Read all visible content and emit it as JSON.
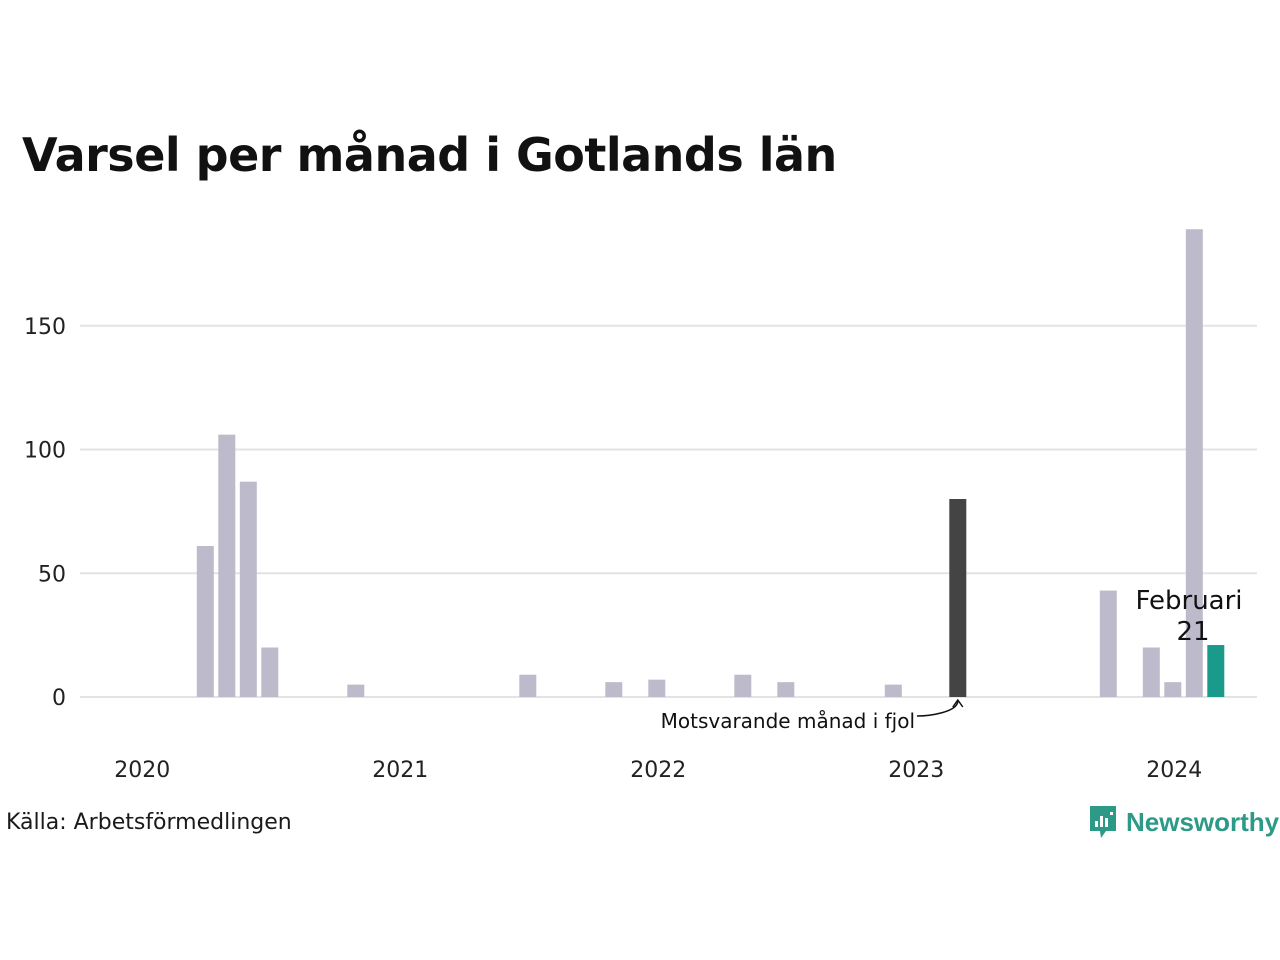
{
  "title": "Varsel per månad i Gotlands län",
  "source": "Källa: Arbetsförmedlingen",
  "brand": {
    "name": "Newsworthy",
    "icon": "newsworthy-logo-icon",
    "color": "#2c9a86"
  },
  "colors": {
    "bar": "#bdbbcb",
    "same_month_last_year": "#444444",
    "current": "#1a9a8a",
    "grid": "#e3e3e3"
  },
  "annotations": {
    "last_year": "Motsvarande månad i fjol",
    "current_month": "Februari",
    "current_value": "21"
  },
  "chart_data": {
    "type": "bar",
    "title": "Varsel per månad i Gotlands län",
    "xlabel": "",
    "ylabel": "",
    "ylim": [
      0,
      190
    ],
    "y_ticks": [
      0,
      50,
      100,
      150
    ],
    "x_ticks": [
      "2020",
      "2021",
      "2022",
      "2023",
      "2024"
    ],
    "grid": true,
    "categories": [
      "2020-01",
      "2020-02",
      "2020-03",
      "2020-04",
      "2020-05",
      "2020-06",
      "2020-07",
      "2020-08",
      "2020-09",
      "2020-10",
      "2020-11",
      "2020-12",
      "2021-01",
      "2021-02",
      "2021-03",
      "2021-04",
      "2021-05",
      "2021-06",
      "2021-07",
      "2021-08",
      "2021-09",
      "2021-10",
      "2021-11",
      "2021-12",
      "2022-01",
      "2022-02",
      "2022-03",
      "2022-04",
      "2022-05",
      "2022-06",
      "2022-07",
      "2022-08",
      "2022-09",
      "2022-10",
      "2022-11",
      "2022-12",
      "2023-01",
      "2023-02",
      "2023-03",
      "2023-04",
      "2023-05",
      "2023-06",
      "2023-07",
      "2023-08",
      "2023-09",
      "2023-10",
      "2023-11",
      "2023-12",
      "2024-01",
      "2024-02"
    ],
    "values": [
      0,
      0,
      61,
      106,
      87,
      20,
      0,
      0,
      0,
      5,
      0,
      0,
      0,
      0,
      0,
      0,
      0,
      9,
      0,
      0,
      0,
      6,
      0,
      7,
      0,
      0,
      0,
      9,
      0,
      6,
      0,
      0,
      0,
      0,
      5,
      0,
      0,
      80,
      0,
      0,
      0,
      0,
      0,
      0,
      43,
      0,
      20,
      6,
      189,
      21
    ],
    "highlight": {
      "same_month_last_year": "2023-02",
      "current": "2024-02"
    }
  }
}
